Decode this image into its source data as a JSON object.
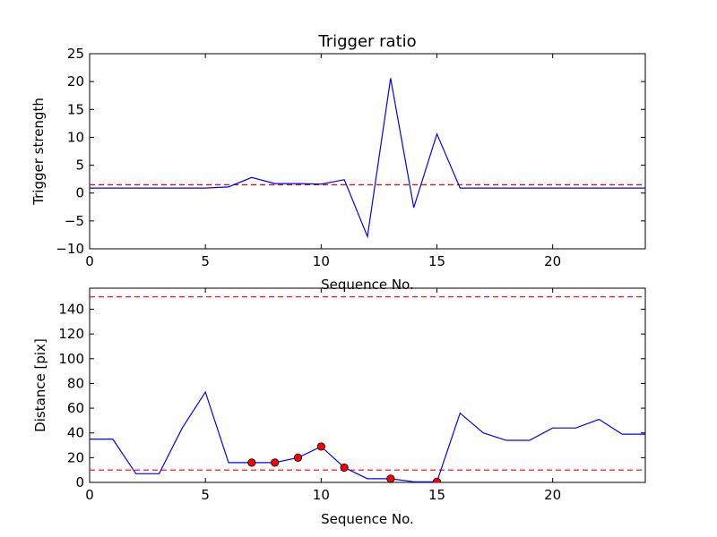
{
  "chart_data": [
    {
      "type": "line",
      "title": "Trigger ratio",
      "xlabel": "Sequence No.",
      "ylabel": "Trigger strength",
      "xlim": [
        0,
        24
      ],
      "ylim": [
        -10,
        25
      ],
      "xticks": [
        0,
        5,
        10,
        15,
        20
      ],
      "yticks": [
        -10,
        -5,
        0,
        5,
        10,
        15,
        20,
        25
      ],
      "xtick_labels": [
        "0",
        "5",
        "10",
        "15",
        "20"
      ],
      "ytick_labels": [
        "−10",
        "−5",
        "0",
        "5",
        "10",
        "15",
        "20",
        "25"
      ],
      "series": [
        {
          "color": "#0000ff",
          "x": [
            0,
            1,
            2,
            3,
            4,
            5,
            6,
            7,
            8,
            9,
            10,
            11,
            12,
            13,
            14,
            15,
            16,
            17,
            18,
            19,
            20,
            21,
            22,
            23,
            24
          ],
          "y": [
            0.9,
            0.9,
            0.9,
            0.9,
            0.9,
            0.9,
            1.1,
            2.8,
            1.7,
            1.7,
            1.6,
            2.4,
            -7.8,
            20.6,
            -2.6,
            10.6,
            0.9,
            0.9,
            0.9,
            0.9,
            0.9,
            0.9,
            0.9,
            0.9,
            0.9
          ]
        }
      ],
      "hlines": [
        {
          "y": 1.5,
          "color": "#ff0000",
          "style": "dashed"
        }
      ],
      "grid": false
    },
    {
      "type": "line",
      "title": "",
      "xlabel": "Sequence No.",
      "ylabel": "Distance [pix]",
      "xlim": [
        0,
        24
      ],
      "ylim": [
        0,
        157
      ],
      "xticks": [
        0,
        5,
        10,
        15,
        20
      ],
      "yticks": [
        0,
        20,
        40,
        60,
        80,
        100,
        120,
        140
      ],
      "xtick_labels": [
        "0",
        "5",
        "10",
        "15",
        "20"
      ],
      "ytick_labels": [
        "0",
        "20",
        "40",
        "60",
        "80",
        "100",
        "120",
        "140"
      ],
      "series": [
        {
          "color": "#0000ff",
          "x": [
            0,
            1,
            2,
            3,
            4,
            5,
            6,
            7,
            8,
            9,
            10,
            11,
            12,
            13,
            14,
            15,
            16,
            17,
            18,
            19,
            20,
            21,
            22,
            23,
            24
          ],
          "y": [
            35,
            35,
            7,
            7,
            44,
            73,
            16,
            16,
            16,
            20,
            29,
            12,
            3,
            3,
            0.5,
            0.5,
            56,
            40,
            34,
            34,
            44,
            44,
            51,
            39,
            39
          ]
        }
      ],
      "markers": {
        "color": "#ff0000",
        "x": [
          7,
          8,
          9,
          10,
          11,
          13,
          15
        ],
        "y": [
          16,
          16,
          20,
          29,
          12,
          3,
          0.5
        ]
      },
      "hlines": [
        {
          "y": 150,
          "color": "#ff0000",
          "style": "dashed"
        },
        {
          "y": 10,
          "color": "#ff0000",
          "style": "dashed"
        }
      ],
      "grid": false
    }
  ]
}
